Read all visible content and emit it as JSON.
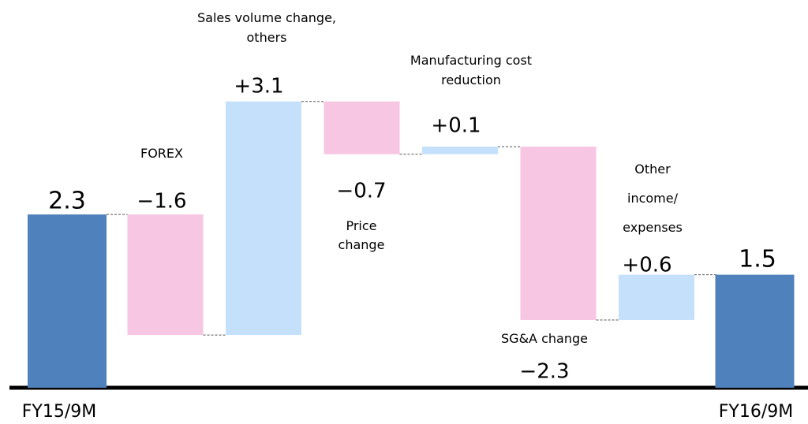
{
  "chart_data": {
    "type": "waterfall",
    "categories": [
      "FY15/9M",
      "FOREX",
      "Sales volume change, others",
      "Price change",
      "Manufacturing cost reduction",
      "SG&A change",
      "Other income/ expenses",
      "FY16/9M"
    ],
    "values": [
      2.3,
      -1.6,
      3.1,
      -0.7,
      0.1,
      -2.3,
      0.6,
      1.5
    ],
    "value_labels": [
      "2.3",
      "−1.6",
      "+3.1",
      "−0.7",
      "+0.1",
      "−2.3",
      "+0.6",
      "1.5"
    ],
    "total_color": "#4f81bd",
    "increase_color": "#c5e0fb",
    "decrease_color": "#f7c6e3",
    "ylim": [
      0,
      5
    ]
  }
}
